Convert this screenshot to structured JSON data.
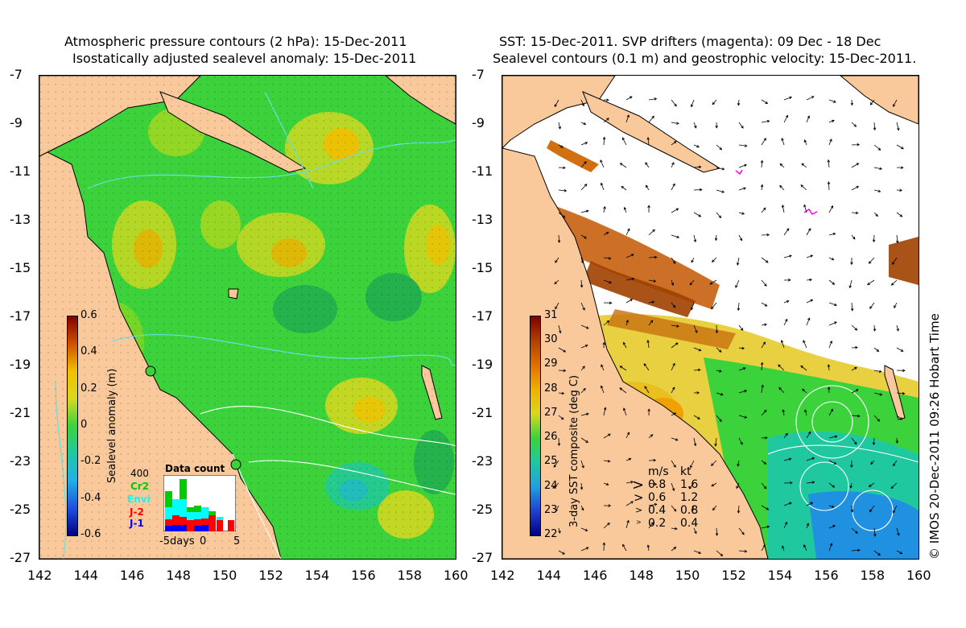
{
  "left": {
    "title_line1": "Atmospheric pressure contours (2 hPa): 15-Dec-2011",
    "title_line2": "Isostatically adjusted sealevel anomaly: 15-Dec-2011",
    "colorbar_label": "Sealevel anomaly (m)",
    "colorbar_ticks": [
      "0.6",
      "0.4",
      "0.2",
      "0",
      "-0.2",
      "-0.4",
      "-0.6"
    ],
    "inset": {
      "title": "Data count",
      "ymax": "400",
      "x_labels": [
        "-5",
        "days",
        "0",
        "5"
      ],
      "legend": [
        {
          "label": "Cr2",
          "color": "#00cc00"
        },
        {
          "label": "Envi",
          "color": "#00ffff"
        },
        {
          "label": "J-2",
          "color": "#ff0000"
        },
        {
          "label": "J-1",
          "color": "#0000ff"
        }
      ]
    }
  },
  "right": {
    "title_line1": "SST: 15-Dec-2011. SVP drifters (magenta): 09 Dec - 18 Dec",
    "title_line2": "Sealevel contours (0.1 m) and geostrophic velocity: 15-Dec-2011.",
    "colorbar_label": "3-day SST composite (deg C)",
    "colorbar_ticks": [
      "31",
      "30",
      "29",
      "28",
      "27",
      "26",
      "25",
      "24",
      "23",
      "22"
    ],
    "speed_legend": {
      "header_ms": "m/s",
      "header_kt": "kt",
      "rows": [
        {
          "ms": "0.8",
          "kt": "1.6"
        },
        {
          "ms": "0.6",
          "kt": "1.2"
        },
        {
          "ms": "0.4",
          "kt": "0.8"
        },
        {
          "ms": "0.2",
          "kt": "0.4"
        }
      ]
    },
    "credit": "© IMOS 20-Dec-2011 09:26 Hobart Time"
  },
  "axes": {
    "lat_ticks": [
      "-7",
      "-9",
      "-11",
      "-13",
      "-15",
      "-17",
      "-19",
      "-21",
      "-23",
      "-25",
      "-27"
    ],
    "lon_ticks": [
      "142",
      "144",
      "146",
      "148",
      "150",
      "152",
      "154",
      "156",
      "158",
      "160"
    ]
  },
  "colors": {
    "land": "#f9c99b",
    "ocean_green": "#3cd23c",
    "arrow": "#000000",
    "drifter": "#ff00ff",
    "contour_cyan": "#66e0e0"
  }
}
